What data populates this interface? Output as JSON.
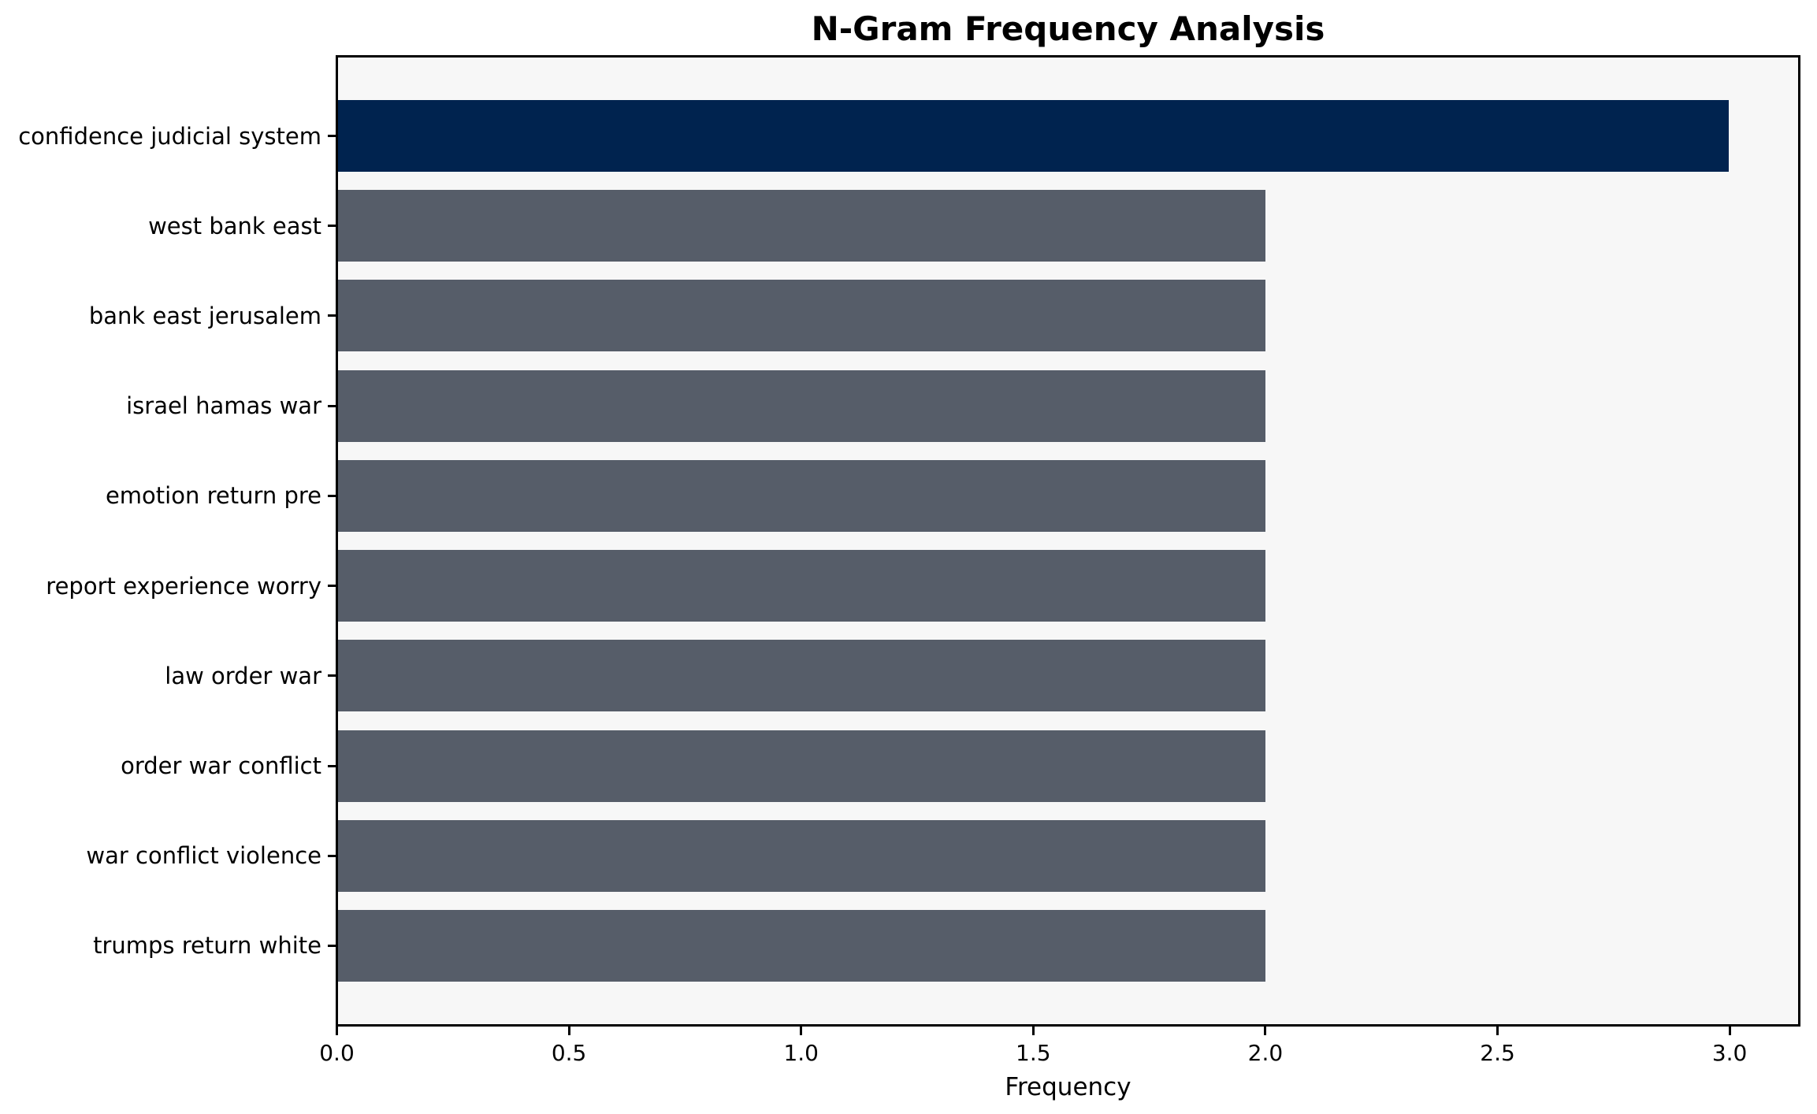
{
  "chart_data": {
    "type": "bar",
    "orientation": "horizontal",
    "title": "N-Gram Frequency Analysis",
    "xlabel": "Frequency",
    "ylabel": "",
    "categories": [
      "confidence judicial system",
      "west bank east",
      "bank east jerusalem",
      "israel hamas war",
      "emotion return pre",
      "report experience worry",
      "law order war",
      "order war conflict",
      "war conflict violence",
      "trumps return white"
    ],
    "values": [
      3,
      2,
      2,
      2,
      2,
      2,
      2,
      2,
      2,
      2
    ],
    "bar_color_roles": [
      "highlight",
      "default",
      "default",
      "default",
      "default",
      "default",
      "default",
      "default",
      "default",
      "default"
    ],
    "xtick_labels": [
      "0.0",
      "0.5",
      "1.0",
      "1.5",
      "2.0",
      "2.5",
      "3.0"
    ],
    "xtick_values": [
      0.0,
      0.5,
      1.0,
      1.5,
      2.0,
      2.5,
      3.0
    ],
    "xlim": [
      0,
      3.15
    ],
    "grid": false,
    "legend": null,
    "bar_height_fraction": 0.8,
    "colors": {
      "highlight_bar": "#00234F",
      "default_bar": "#565D69",
      "plot_background": "#F7F7F7",
      "figure_background": "#FFFFFF",
      "axis": "#000000",
      "text": "#000000"
    }
  }
}
